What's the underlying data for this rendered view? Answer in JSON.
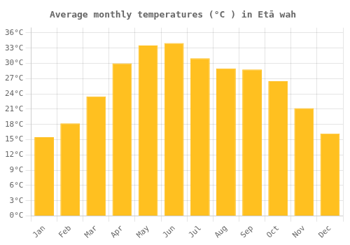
{
  "chart_data": {
    "type": "bar",
    "title": "Average monthly temperatures (°C ) in Etā wah",
    "categories": [
      "Jan",
      "Feb",
      "Mar",
      "Apr",
      "May",
      "Jun",
      "Jul",
      "Aug",
      "Sep",
      "Oct",
      "Nov",
      "Dec"
    ],
    "values": [
      15.5,
      18.2,
      23.5,
      30.0,
      33.5,
      34.0,
      31.0,
      29.0,
      28.8,
      26.5,
      21.2,
      16.2
    ],
    "color": "#FFC020",
    "ylim": [
      0,
      37
    ],
    "yticks": [
      {
        "value": 0,
        "label": "0°C"
      },
      {
        "value": 3,
        "label": "3°C"
      },
      {
        "value": 6,
        "label": "6°C"
      },
      {
        "value": 9,
        "label": "9°C"
      },
      {
        "value": 12,
        "label": "12°C"
      },
      {
        "value": 15,
        "label": "15°C"
      },
      {
        "value": 18,
        "label": "18°C"
      },
      {
        "value": 21,
        "label": "21°C"
      },
      {
        "value": 24,
        "label": "24°C"
      },
      {
        "value": 27,
        "label": "27°C"
      },
      {
        "value": 30,
        "label": "30°C"
      },
      {
        "value": 33,
        "label": "33°C"
      },
      {
        "value": 36,
        "label": "36°C"
      }
    ],
    "grid": true
  }
}
